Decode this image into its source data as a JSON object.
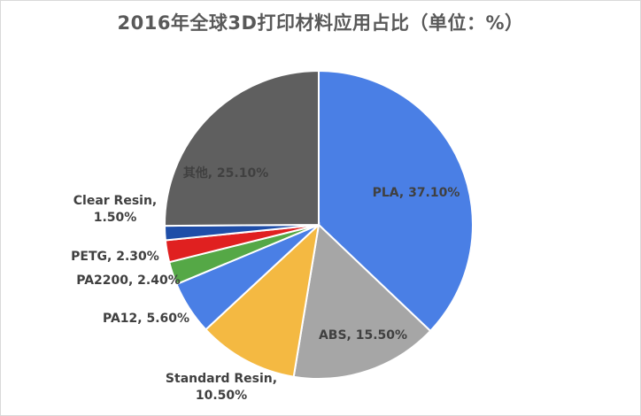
{
  "chart_data": {
    "type": "pie",
    "title": "2016年全球3D打印材料应用占比（单位：%）",
    "slices": [
      {
        "name": "PLA",
        "value": 37.1,
        "label": "PLA, 37.10%",
        "color": "#4a7fe5"
      },
      {
        "name": "ABS",
        "value": 15.5,
        "label": "ABS, 15.50%",
        "color": "#a6a6a6"
      },
      {
        "name": "Standard Resin",
        "value": 10.5,
        "label": [
          "Standard Resin,",
          "10.50%"
        ],
        "color": "#f4b942"
      },
      {
        "name": "PA12",
        "value": 5.6,
        "label": "PA12, 5.60%",
        "color": "#4a7fe5"
      },
      {
        "name": "PA2200",
        "value": 2.4,
        "label": "PA2200, 2.40%",
        "color": "#55a846"
      },
      {
        "name": "PETG",
        "value": 2.3,
        "label": "PETG, 2.30%",
        "color": "#e02020"
      },
      {
        "name": "Clear Resin",
        "value": 1.5,
        "label": [
          "Clear Resin,",
          "1.50%"
        ],
        "color": "#1f4ea8"
      },
      {
        "name": "其他",
        "value": 25.1,
        "label": "其他, 25.10%",
        "color": "#5f5f5f"
      }
    ],
    "start_angle_deg": 0,
    "direction": "clockwise",
    "legend": "none"
  }
}
